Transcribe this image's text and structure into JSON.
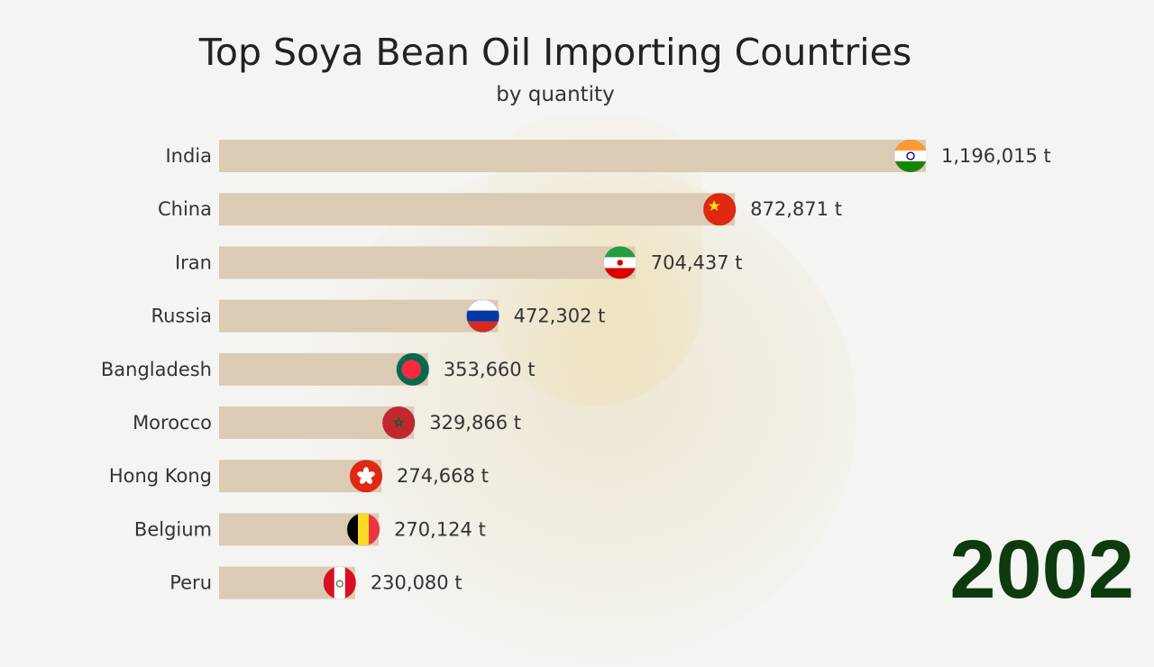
{
  "title": "Top Soya Bean Oil Importing Countries",
  "subtitle": "by quantity",
  "year": "2002",
  "colors": {
    "bar": "#dccbb4",
    "text": "#222222",
    "year": "#0d3b0f"
  },
  "chart_data": {
    "type": "bar",
    "orientation": "horizontal",
    "title": "Top Soya Bean Oil Importing Countries",
    "subtitle": "by quantity",
    "unit": "t",
    "categories": [
      "India",
      "China",
      "Iran",
      "Russia",
      "Bangladesh",
      "Morocco",
      "Hong Kong",
      "Belgium",
      "Peru"
    ],
    "values": [
      1196015,
      872871,
      704437,
      472302,
      353660,
      329866,
      274668,
      270124,
      230080
    ],
    "value_labels": [
      "1,196,015 t",
      "872,871 t",
      "704,437 t",
      "472,302 t",
      "353,660 t",
      "329,866 t",
      "274,668 t",
      "270,124 t",
      "230,080 t"
    ],
    "flags": [
      "flag-india-icon",
      "flag-china-icon",
      "flag-iran-icon",
      "flag-russia-icon",
      "flag-bangladesh-icon",
      "flag-morocco-icon",
      "flag-hong-kong-icon",
      "flag-belgium-icon",
      "flag-peru-icon"
    ],
    "xlim": [
      0,
      1196015
    ],
    "grid": false
  }
}
